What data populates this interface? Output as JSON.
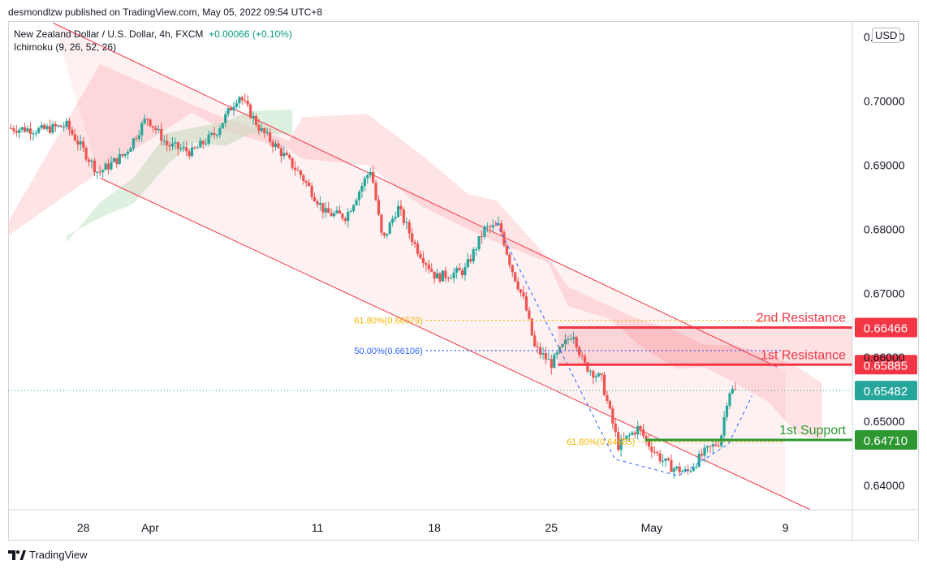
{
  "header": {
    "published": "desmondlzw published on TradingView.com, May 05, 2022 09:54 UTC+8"
  },
  "legend": {
    "symbol": "New Zealand Dollar / U.S. Dollar, 4h, FXCM",
    "change": "+0.00066 (+0.10%)",
    "indicator": "Ichimoku (9, 26, 52, 26)"
  },
  "currency": "USD",
  "footer": {
    "brand": "TradingView"
  },
  "colors": {
    "up": "#26a69a",
    "down": "#ef5350",
    "resistance": "#f23645",
    "support": "#2e9732",
    "fib_618": "#f7b500",
    "fib_500": "#2962ff",
    "channel": "#f23645",
    "cloud_bear": "#ffcdd2",
    "cloud_bull": "#c8e6c9"
  },
  "chart_data": {
    "type": "candlestick",
    "title": "New Zealand Dollar / U.S. Dollar, 4h, FXCM",
    "ylim": [
      0.6362,
      0.7125
    ],
    "y_ticks": [
      "0.71000",
      "0.70000",
      "0.69000",
      "0.68000",
      "0.67000",
      "0.66000",
      "0.65000",
      "0.64000"
    ],
    "x_ticks": [
      {
        "label": "28",
        "day": 0
      },
      {
        "label": "Apr",
        "day": 4
      },
      {
        "label": "11",
        "day": 14
      },
      {
        "label": "18",
        "day": 21
      },
      {
        "label": "25",
        "day": 28
      },
      {
        "label": "May",
        "day": 34
      },
      {
        "label": "9",
        "day": 42
      }
    ],
    "x_range_days": [
      -4.5,
      46
    ],
    "price_anchors": [
      [
        -4.5,
        0.6958
      ],
      [
        -2.5,
        0.6955
      ],
      [
        -1.0,
        0.6962
      ],
      [
        0.9,
        0.6888
      ],
      [
        2.5,
        0.6918
      ],
      [
        3.8,
        0.6975
      ],
      [
        5.0,
        0.6932
      ],
      [
        6.5,
        0.692
      ],
      [
        7.9,
        0.695
      ],
      [
        9.3,
        0.701
      ],
      [
        10.6,
        0.6955
      ],
      [
        11.5,
        0.693
      ],
      [
        13.0,
        0.6885
      ],
      [
        14.5,
        0.6825
      ],
      [
        15.7,
        0.682
      ],
      [
        17.2,
        0.6895
      ],
      [
        17.9,
        0.678
      ],
      [
        18.8,
        0.6835
      ],
      [
        19.9,
        0.6772
      ],
      [
        21.1,
        0.6725
      ],
      [
        22.8,
        0.6735
      ],
      [
        24.0,
        0.68
      ],
      [
        24.9,
        0.6805
      ],
      [
        25.6,
        0.674
      ],
      [
        26.4,
        0.6685
      ],
      [
        27.0,
        0.6615
      ],
      [
        28.0,
        0.659
      ],
      [
        29.3,
        0.664
      ],
      [
        29.9,
        0.659
      ],
      [
        31.0,
        0.6565
      ],
      [
        32.0,
        0.6462
      ],
      [
        33.2,
        0.649
      ],
      [
        33.8,
        0.6465
      ],
      [
        34.6,
        0.644
      ],
      [
        35.2,
        0.6428
      ],
      [
        36.1,
        0.642
      ],
      [
        37.1,
        0.645
      ],
      [
        38.1,
        0.647
      ],
      [
        38.6,
        0.6548
      ],
      [
        39.0,
        0.6548
      ]
    ],
    "levels": [
      {
        "name": "2nd Resistance",
        "value": 0.66466,
        "label": "0.66466",
        "color": "#f23645"
      },
      {
        "name": "1st Resistance",
        "value": 0.65885,
        "label": "0.65885",
        "color": "#f23645"
      },
      {
        "name": "1st Support",
        "value": 0.6471,
        "label": "0.64710",
        "color": "#2e9732"
      }
    ],
    "last_price": {
      "value": 0.65482,
      "label": "0.65482"
    },
    "fibonacci": [
      {
        "label": "61.80%(0.66579)",
        "value": 0.66579,
        "color": "#f7b500",
        "from_day": 20.5,
        "to_day": 41.8
      },
      {
        "label": "50.00%(0.66106)",
        "value": 0.66106,
        "color": "#2962ff",
        "from_day": 20.5,
        "to_day": 41.8
      },
      {
        "label": "61.80%(0.64685)",
        "value": 0.64685,
        "color": "#f7b500",
        "from_day": 33.2,
        "to_day": 41.8
      }
    ],
    "fib_path": [
      [
        24.7,
        0.681
      ],
      [
        31.8,
        0.6441
      ],
      [
        35.6,
        0.6415
      ],
      [
        38.6,
        0.6465
      ],
      [
        40.0,
        0.654
      ]
    ],
    "resistance_zone": {
      "from_day": 28.4,
      "top": 0.66466,
      "bottom": 0.65885
    },
    "channel": {
      "upper": [
        [
          -1.8,
          0.7122
        ],
        [
          41.5,
          0.6585
        ]
      ],
      "lower": [
        [
          1.0,
          0.688
        ],
        [
          43.5,
          0.6362
        ]
      ]
    },
    "channel_fill_until_day": 42.0,
    "ichimoku_cloud_bear": [
      [
        -4.5,
        0.6812,
        0.679
      ],
      [
        1.0,
        0.7058,
        0.689
      ],
      [
        6.5,
        0.6995,
        0.6982
      ],
      [
        8.6,
        0.6972,
        0.6952
      ],
      [
        12.3,
        0.6938,
        0.6925
      ],
      [
        13.1,
        0.6975,
        0.691
      ],
      [
        17.0,
        0.698,
        0.69
      ],
      [
        20.3,
        0.6915,
        0.6835
      ],
      [
        23.0,
        0.6855,
        0.68
      ],
      [
        24.7,
        0.6845,
        0.678
      ],
      [
        27.8,
        0.6755,
        0.6748
      ],
      [
        29.0,
        0.671,
        0.668
      ],
      [
        31.5,
        0.668,
        0.666
      ],
      [
        33.2,
        0.666,
        0.662
      ],
      [
        35.5,
        0.664,
        0.6582
      ],
      [
        37.1,
        0.662,
        0.6585
      ],
      [
        39.0,
        0.6618,
        0.656
      ],
      [
        41.0,
        0.6605,
        0.653
      ],
      [
        42.7,
        0.6585,
        0.648
      ],
      [
        44.2,
        0.656,
        0.647
      ]
    ],
    "ichimoku_cloud_bull": [
      [
        -1.0,
        0.678,
        0.679
      ],
      [
        1.0,
        0.6842,
        0.6818
      ],
      [
        3.0,
        0.688,
        0.684
      ],
      [
        5.0,
        0.695,
        0.69
      ],
      [
        6.5,
        0.6958,
        0.6935
      ],
      [
        8.5,
        0.6968,
        0.693
      ],
      [
        10.0,
        0.6985,
        0.695
      ],
      [
        12.5,
        0.6987,
        0.6948
      ]
    ]
  }
}
